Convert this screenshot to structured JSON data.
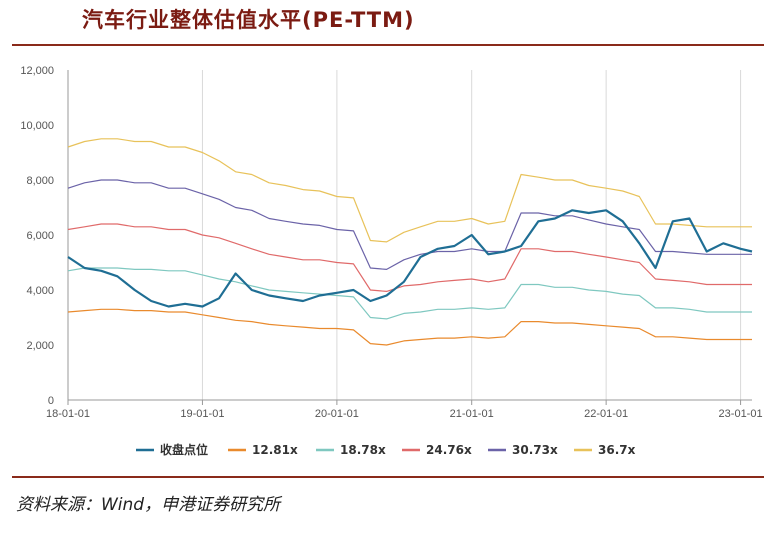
{
  "title": "汽车行业整体估值水平(PE-TTM)",
  "source": "资料来源：Wind，申港证券研究所",
  "chart_data": {
    "type": "line",
    "title": "汽车行业整体估值水平(PE-TTM)",
    "xlabel": "",
    "ylabel": "",
    "ylim": [
      0,
      12000
    ],
    "yticks": [
      0,
      2000,
      4000,
      6000,
      8000,
      10000,
      12000
    ],
    "ytick_labels": [
      "0",
      "2,000",
      "4,000",
      "6,000",
      "8,000",
      "10,000",
      "12,000"
    ],
    "xlim": [
      "2018-01-01",
      "2023-02-01"
    ],
    "xticks": [
      "2018-01-01",
      "2019-01-01",
      "2020-01-01",
      "2021-01-01",
      "2022-01-01",
      "2023-01-01"
    ],
    "xtick_labels": [
      "18-01-01",
      "19-01-01",
      "20-01-01",
      "21-01-01",
      "22-01-01",
      "23-01-01"
    ],
    "grid": "vertical",
    "legend": "bottom",
    "x": [
      "2018-01-01",
      "2018-02-15",
      "2018-04-01",
      "2018-05-15",
      "2018-07-01",
      "2018-08-15",
      "2018-10-01",
      "2018-11-15",
      "2019-01-01",
      "2019-02-15",
      "2019-04-01",
      "2019-05-15",
      "2019-07-01",
      "2019-08-15",
      "2019-10-01",
      "2019-11-15",
      "2020-01-01",
      "2020-02-15",
      "2020-04-01",
      "2020-05-15",
      "2020-07-01",
      "2020-08-15",
      "2020-10-01",
      "2020-11-15",
      "2021-01-01",
      "2021-02-15",
      "2021-04-01",
      "2021-05-15",
      "2021-07-01",
      "2021-08-15",
      "2021-10-01",
      "2021-11-15",
      "2022-01-01",
      "2022-02-15",
      "2022-04-01",
      "2022-05-15",
      "2022-07-01",
      "2022-08-15",
      "2022-10-01",
      "2022-11-15",
      "2023-01-01",
      "2023-02-01"
    ],
    "series": [
      {
        "name": "收盘点位",
        "color": "#1f6e94",
        "width": 2.2,
        "values": [
          5200,
          4800,
          4700,
          4500,
          4000,
          3600,
          3400,
          3500,
          3400,
          3700,
          4600,
          4000,
          3800,
          3700,
          3600,
          3800,
          3900,
          4000,
          3600,
          3800,
          4300,
          5200,
          5500,
          5600,
          6000,
          5300,
          5400,
          5600,
          6500,
          6600,
          6900,
          6800,
          6900,
          6500,
          5700,
          4800,
          6500,
          6600,
          5400,
          5700,
          5500,
          5400
        ]
      },
      {
        "name": "12.81x",
        "color": "#e98a2d",
        "width": 1.2,
        "values": [
          3200,
          3250,
          3300,
          3300,
          3250,
          3250,
          3200,
          3200,
          3100,
          3000,
          2900,
          2850,
          2750,
          2700,
          2650,
          2600,
          2600,
          2550,
          2050,
          2000,
          2150,
          2200,
          2250,
          2250,
          2300,
          2250,
          2300,
          2850,
          2850,
          2800,
          2800,
          2750,
          2700,
          2650,
          2600,
          2300,
          2300,
          2250,
          2200,
          2200,
          2200,
          2200
        ]
      },
      {
        "name": "18.78x",
        "color": "#7fc8c0",
        "width": 1.2,
        "values": [
          4700,
          4800,
          4800,
          4800,
          4750,
          4750,
          4700,
          4700,
          4550,
          4400,
          4300,
          4150,
          4000,
          3950,
          3900,
          3850,
          3800,
          3750,
          3000,
          2950,
          3150,
          3200,
          3300,
          3300,
          3350,
          3300,
          3350,
          4200,
          4200,
          4100,
          4100,
          4000,
          3950,
          3850,
          3800,
          3350,
          3350,
          3300,
          3200,
          3200,
          3200,
          3200
        ]
      },
      {
        "name": "24.76x",
        "color": "#e06a6a",
        "width": 1.2,
        "values": [
          6200,
          6300,
          6400,
          6400,
          6300,
          6300,
          6200,
          6200,
          6000,
          5900,
          5700,
          5500,
          5300,
          5200,
          5100,
          5100,
          5000,
          4950,
          4000,
          3950,
          4150,
          4200,
          4300,
          4350,
          4400,
          4300,
          4400,
          5500,
          5500,
          5400,
          5400,
          5300,
          5200,
          5100,
          5000,
          4400,
          4350,
          4300,
          4200,
          4200,
          4200,
          4200
        ]
      },
      {
        "name": "30.73x",
        "color": "#6b63a8",
        "width": 1.2,
        "values": [
          7700,
          7900,
          8000,
          8000,
          7900,
          7900,
          7700,
          7700,
          7500,
          7300,
          7000,
          6900,
          6600,
          6500,
          6400,
          6350,
          6200,
          6150,
          4800,
          4750,
          5100,
          5300,
          5400,
          5400,
          5500,
          5400,
          5400,
          6800,
          6800,
          6700,
          6700,
          6550,
          6400,
          6300,
          6200,
          5400,
          5400,
          5350,
          5300,
          5300,
          5300,
          5300
        ]
      },
      {
        "name": "36.7x",
        "color": "#e8c25a",
        "width": 1.2,
        "values": [
          9200,
          9400,
          9500,
          9500,
          9400,
          9400,
          9200,
          9200,
          9000,
          8700,
          8300,
          8200,
          7900,
          7800,
          7650,
          7600,
          7400,
          7350,
          5800,
          5750,
          6100,
          6300,
          6500,
          6500,
          6600,
          6400,
          6500,
          8200,
          8100,
          8000,
          8000,
          7800,
          7700,
          7600,
          7400,
          6400,
          6400,
          6350,
          6300,
          6300,
          6300,
          6300
        ]
      }
    ]
  }
}
